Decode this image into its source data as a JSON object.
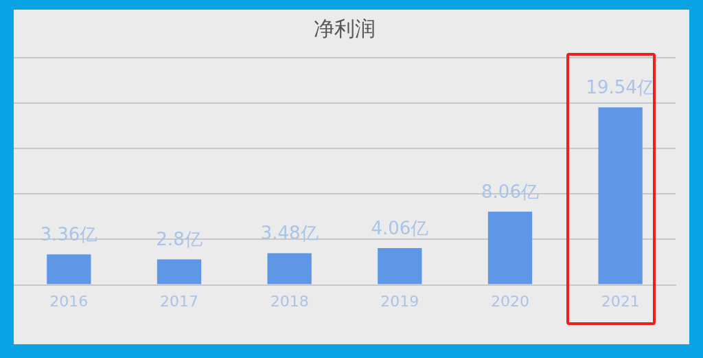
{
  "chart_data": {
    "type": "bar",
    "title": "净利润",
    "categories": [
      "2016",
      "2017",
      "2018",
      "2019",
      "2020",
      "2021"
    ],
    "values": [
      3.36,
      2.8,
      3.48,
      4.06,
      8.06,
      19.54
    ],
    "value_labels": [
      "3.36亿",
      "2.8亿",
      "3.48亿",
      "4.06亿",
      "8.06亿",
      "19.54亿"
    ],
    "color": "#5e97e6",
    "ylim": [
      0,
      25
    ],
    "yticks": [
      {
        "value": 0,
        "label": null
      },
      {
        "value": 5,
        "label": null
      },
      {
        "value": 10,
        "label": null
      },
      {
        "value": 15,
        "label": null
      }
    ],
    "grid": "y",
    "tick_labels": "x"
  }
}
